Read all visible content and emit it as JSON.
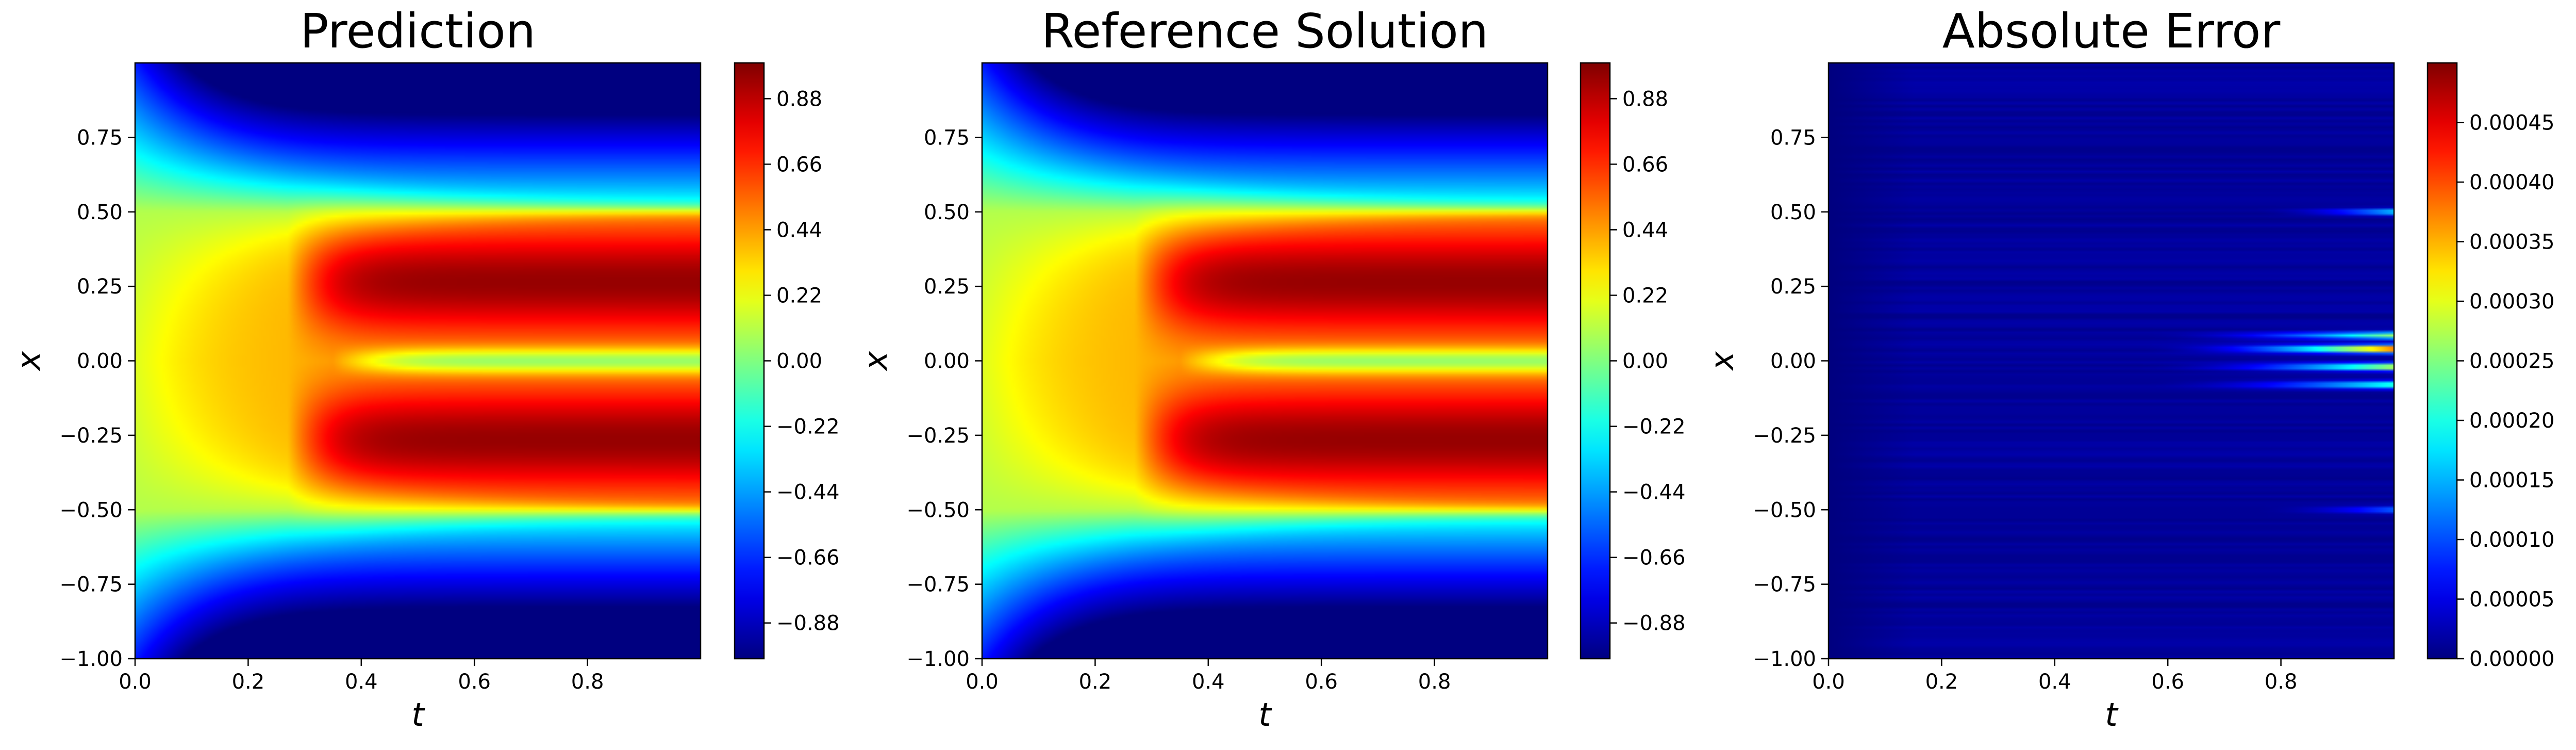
{
  "chart_data": [
    {
      "type": "heatmap",
      "title": "Prediction",
      "xlabel": "t",
      "ylabel": "x",
      "xlim": [
        0.0,
        1.0
      ],
      "ylim": [
        -1.0,
        1.0
      ],
      "x_ticks": [
        "0.0",
        "0.2",
        "0.4",
        "0.6",
        "0.8"
      ],
      "y_ticks": [
        "0.75",
        "0.50",
        "0.25",
        "0.00",
        "−0.25",
        "−0.50",
        "−0.75",
        "−1.00"
      ],
      "colormap": "jet",
      "colorbar": {
        "min": -1.0,
        "max": 1.0,
        "ticks": [
          "0.88",
          "0.66",
          "0.44",
          "0.22",
          "0.00",
          "−0.22",
          "−0.44",
          "−0.66",
          "−0.88"
        ],
        "tick_values": [
          0.88,
          0.66,
          0.44,
          0.22,
          0.0,
          -0.22,
          -0.44,
          -0.66,
          -0.88
        ]
      },
      "field": "solution"
    },
    {
      "type": "heatmap",
      "title": "Reference Solution",
      "xlabel": "t",
      "ylabel": "x",
      "xlim": [
        0.0,
        1.0
      ],
      "ylim": [
        -1.0,
        1.0
      ],
      "x_ticks": [
        "0.0",
        "0.2",
        "0.4",
        "0.6",
        "0.8"
      ],
      "y_ticks": [
        "0.75",
        "0.50",
        "0.25",
        "0.00",
        "−0.25",
        "−0.50",
        "−0.75",
        "−1.00"
      ],
      "colormap": "jet",
      "colorbar": {
        "min": -1.0,
        "max": 1.0,
        "ticks": [
          "0.88",
          "0.66",
          "0.44",
          "0.22",
          "0.00",
          "−0.22",
          "−0.44",
          "−0.66",
          "−0.88"
        ],
        "tick_values": [
          0.88,
          0.66,
          0.44,
          0.22,
          0.0,
          -0.22,
          -0.44,
          -0.66,
          -0.88
        ]
      },
      "field": "solution"
    },
    {
      "type": "heatmap",
      "title": "Absolute Error",
      "xlabel": "t",
      "ylabel": "x",
      "xlim": [
        0.0,
        1.0
      ],
      "ylim": [
        -1.0,
        1.0
      ],
      "x_ticks": [
        "0.0",
        "0.2",
        "0.4",
        "0.6",
        "0.8"
      ],
      "y_ticks": [
        "0.75",
        "0.50",
        "0.25",
        "0.00",
        "−0.25",
        "−0.50",
        "−0.75",
        "−1.00"
      ],
      "colormap": "jet",
      "colorbar": {
        "min": 0.0,
        "max": 0.0005,
        "ticks": [
          "0.00045",
          "0.00040",
          "0.00035",
          "0.00030",
          "0.00025",
          "0.00020",
          "0.00015",
          "0.00010",
          "0.00005",
          "0.00000"
        ],
        "tick_values": [
          0.00045,
          0.0004,
          0.00035,
          0.0003,
          0.00025,
          0.0002,
          0.00015,
          0.0001,
          5e-05,
          0.0
        ]
      },
      "field": "error"
    }
  ]
}
